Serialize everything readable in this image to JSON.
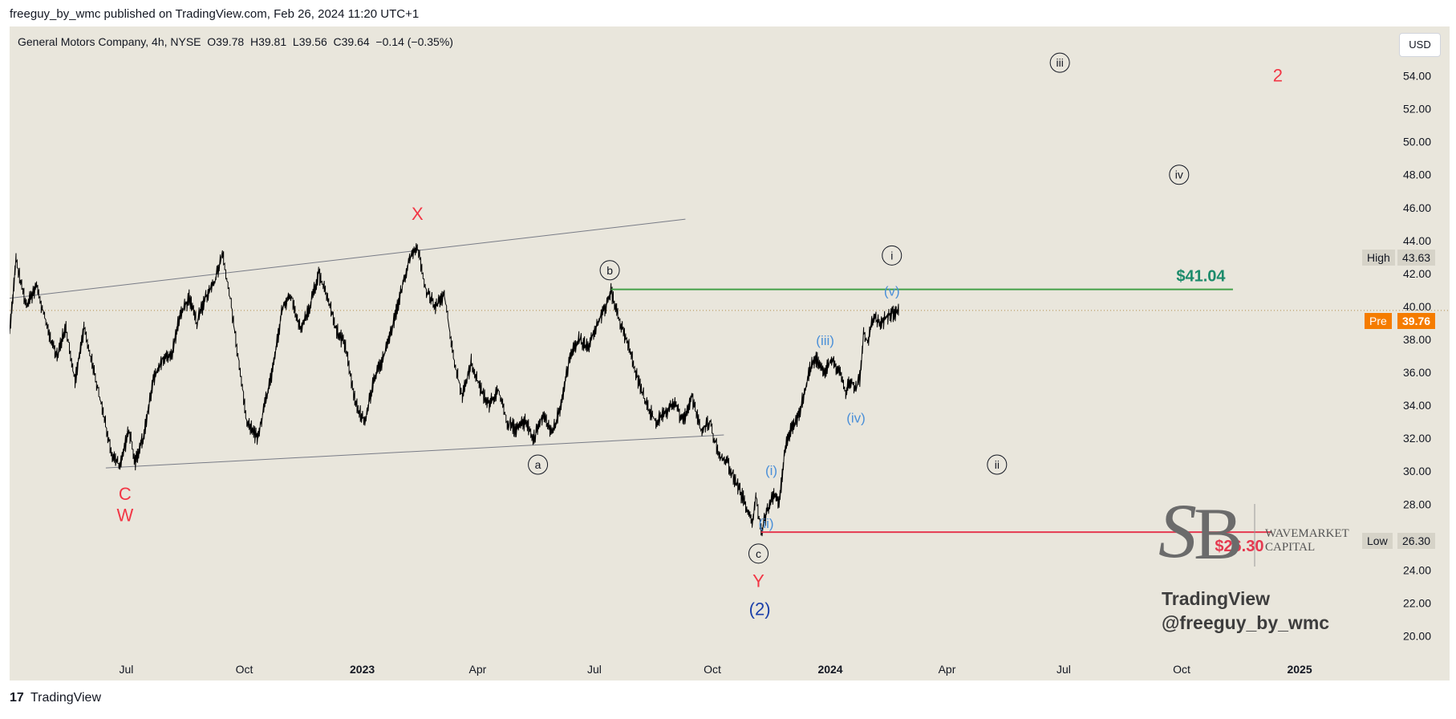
{
  "publisher": "freeguy_by_wmc published on TradingView.com, Feb 26, 2024 11:20 UTC+1",
  "symbol_line": "General Motors Company, 4h, NYSE  O39.78  H39.81  L39.56  C39.64  −0.14 (−0.35%)",
  "currency": "USD",
  "high": {
    "label": "High",
    "value": "43.63"
  },
  "low": {
    "label": "Low",
    "value": "26.30"
  },
  "pre": {
    "label": "Pre",
    "value": "39.76"
  },
  "brand": {
    "line1": "WAVEMARKET",
    "line2": "CAPITAL"
  },
  "watermark": {
    "line1": "TradingView",
    "line2": "@freeguy_by_wmc"
  },
  "footer": {
    "logo": "17",
    "text": "TradingView"
  },
  "colors": {
    "green_level": "#43a047",
    "red_level": "#e53950",
    "pre_badge": "#f57c00",
    "wave_red": "#f23645",
    "wave_blue": "#4a8fd8",
    "wave_navy": "#1b3faa",
    "candle": "#000000"
  },
  "chart_data": {
    "type": "line",
    "title": "General Motors Company, 4h, NYSE",
    "ylim": [
      19,
      57
    ],
    "y_ticks": [
      20,
      22,
      24,
      26,
      28,
      30,
      32,
      34,
      36,
      38,
      40,
      42,
      44,
      46,
      48,
      50,
      52,
      54
    ],
    "y_tick_labels": [
      "20.00",
      "22.00",
      "24.00",
      "26.00",
      "28.00",
      "30.00",
      "32.00",
      "34.00",
      "36.00",
      "38.00",
      "40.00",
      "42.00",
      "44.00",
      "46.00",
      "48.00",
      "50.00",
      "52.00",
      "54.00"
    ],
    "x_range": [
      "2022-04-01",
      "2025-02-15"
    ],
    "x_ticks": [
      {
        "date": "2022-07-01",
        "label": "Jul",
        "bold": false
      },
      {
        "date": "2022-10-01",
        "label": "Oct",
        "bold": false
      },
      {
        "date": "2023-01-01",
        "label": "2023",
        "bold": true
      },
      {
        "date": "2023-04-01",
        "label": "Apr",
        "bold": false
      },
      {
        "date": "2023-07-01",
        "label": "Jul",
        "bold": false
      },
      {
        "date": "2023-10-01",
        "label": "Oct",
        "bold": false
      },
      {
        "date": "2024-01-01",
        "label": "2024",
        "bold": true
      },
      {
        "date": "2024-04-01",
        "label": "Apr",
        "bold": false
      },
      {
        "date": "2024-07-01",
        "label": "Jul",
        "bold": false
      },
      {
        "date": "2024-10-01",
        "label": "Oct",
        "bold": false
      },
      {
        "date": "2025-01-01",
        "label": "2025",
        "bold": true
      }
    ],
    "series": [
      {
        "name": "GM",
        "points": [
          [
            "2022-04-01",
            38.5
          ],
          [
            "2022-04-06",
            42.8
          ],
          [
            "2022-04-14",
            40.0
          ],
          [
            "2022-04-22",
            41.2
          ],
          [
            "2022-05-01",
            38.5
          ],
          [
            "2022-05-08",
            37.0
          ],
          [
            "2022-05-15",
            38.8
          ],
          [
            "2022-05-22",
            35.5
          ],
          [
            "2022-05-29",
            38.7
          ],
          [
            "2022-06-06",
            36.0
          ],
          [
            "2022-06-13",
            33.5
          ],
          [
            "2022-06-20",
            31.0
          ],
          [
            "2022-06-26",
            30.3
          ],
          [
            "2022-07-03",
            32.5
          ],
          [
            "2022-07-08",
            30.6
          ],
          [
            "2022-07-14",
            32.0
          ],
          [
            "2022-07-22",
            35.5
          ],
          [
            "2022-07-29",
            36.8
          ],
          [
            "2022-08-05",
            37.0
          ],
          [
            "2022-08-12",
            39.5
          ],
          [
            "2022-08-19",
            40.5
          ],
          [
            "2022-08-25",
            39.0
          ],
          [
            "2022-09-01",
            40.6
          ],
          [
            "2022-09-08",
            41.5
          ],
          [
            "2022-09-14",
            43.3
          ],
          [
            "2022-09-20",
            40.5
          ],
          [
            "2022-09-27",
            36.5
          ],
          [
            "2022-10-03",
            33.0
          ],
          [
            "2022-10-11",
            32.0
          ],
          [
            "2022-10-17",
            34.0
          ],
          [
            "2022-10-24",
            36.5
          ],
          [
            "2022-10-31",
            40.0
          ],
          [
            "2022-11-07",
            40.6
          ],
          [
            "2022-11-14",
            38.5
          ],
          [
            "2022-11-21",
            40.0
          ],
          [
            "2022-11-28",
            42.0
          ],
          [
            "2022-12-05",
            40.5
          ],
          [
            "2022-12-12",
            38.6
          ],
          [
            "2022-12-19",
            37.5
          ],
          [
            "2022-12-27",
            34.0
          ],
          [
            "2023-01-03",
            33.0
          ],
          [
            "2023-01-10",
            35.5
          ],
          [
            "2023-01-17",
            36.8
          ],
          [
            "2023-01-24",
            38.5
          ],
          [
            "2023-01-31",
            40.8
          ],
          [
            "2023-02-07",
            43.0
          ],
          [
            "2023-02-13",
            43.6
          ],
          [
            "2023-02-20",
            41.0
          ],
          [
            "2023-02-27",
            40.0
          ],
          [
            "2023-03-06",
            40.7
          ],
          [
            "2023-03-13",
            37.0
          ],
          [
            "2023-03-20",
            34.5
          ],
          [
            "2023-03-27",
            36.6
          ],
          [
            "2023-04-03",
            35.0
          ],
          [
            "2023-04-10",
            34.0
          ],
          [
            "2023-04-17",
            35.0
          ],
          [
            "2023-04-24",
            33.0
          ],
          [
            "2023-05-01",
            32.5
          ],
          [
            "2023-05-08",
            33.0
          ],
          [
            "2023-05-15",
            32.0
          ],
          [
            "2023-05-22",
            33.5
          ],
          [
            "2023-05-29",
            32.3
          ],
          [
            "2023-06-05",
            34.0
          ],
          [
            "2023-06-12",
            37.0
          ],
          [
            "2023-06-19",
            38.0
          ],
          [
            "2023-06-26",
            37.5
          ],
          [
            "2023-07-03",
            39.0
          ],
          [
            "2023-07-10",
            40.0
          ],
          [
            "2023-07-14",
            40.9
          ],
          [
            "2023-07-21",
            39.0
          ],
          [
            "2023-07-28",
            37.5
          ],
          [
            "2023-08-04",
            35.5
          ],
          [
            "2023-08-11",
            34.0
          ],
          [
            "2023-08-18",
            33.0
          ],
          [
            "2023-08-25",
            33.5
          ],
          [
            "2023-09-01",
            34.2
          ],
          [
            "2023-09-08",
            33.0
          ],
          [
            "2023-09-15",
            34.5
          ],
          [
            "2023-09-22",
            32.5
          ],
          [
            "2023-09-29",
            33.0
          ],
          [
            "2023-10-06",
            31.0
          ],
          [
            "2023-10-13",
            30.5
          ],
          [
            "2023-10-20",
            29.2
          ],
          [
            "2023-10-27",
            28.0
          ],
          [
            "2023-11-01",
            26.8
          ],
          [
            "2023-11-04",
            28.5
          ],
          [
            "2023-11-08",
            26.3
          ],
          [
            "2023-11-13",
            27.6
          ],
          [
            "2023-11-18",
            28.5
          ],
          [
            "2023-11-22",
            28.0
          ],
          [
            "2023-11-27",
            31.5
          ],
          [
            "2023-12-01",
            32.5
          ],
          [
            "2023-12-06",
            33.0
          ],
          [
            "2023-12-11",
            34.5
          ],
          [
            "2023-12-16",
            36.2
          ],
          [
            "2023-12-21",
            36.8
          ],
          [
            "2023-12-27",
            36.0
          ],
          [
            "2024-01-02",
            36.8
          ],
          [
            "2024-01-08",
            36.0
          ],
          [
            "2024-01-13",
            34.8
          ],
          [
            "2024-01-17",
            35.5
          ],
          [
            "2024-01-21",
            35.0
          ],
          [
            "2024-01-24",
            35.6
          ],
          [
            "2024-01-27",
            38.5
          ],
          [
            "2024-01-30",
            37.8
          ],
          [
            "2024-02-04",
            39.5
          ],
          [
            "2024-02-09",
            38.8
          ],
          [
            "2024-02-14",
            39.4
          ],
          [
            "2024-02-19",
            39.6
          ],
          [
            "2024-02-24",
            39.7
          ]
        ]
      }
    ],
    "horizontal_levels": [
      {
        "value": 41.04,
        "label": "$41.04",
        "from": "2023-07-14",
        "to": "2024-11-10",
        "color": "green"
      },
      {
        "value": 26.3,
        "label": "$26.30",
        "from": "2023-11-08",
        "to": "2024-12-10",
        "color": "red"
      }
    ],
    "price_line": {
      "value": 39.76,
      "label": "Pre"
    },
    "trendlines": [
      {
        "name": "upper-channel",
        "from": [
          "2022-04-01",
          40.5
        ],
        "to": [
          "2023-09-10",
          45.3
        ]
      },
      {
        "name": "lower-channel",
        "from": [
          "2022-06-15",
          30.2
        ],
        "to": [
          "2023-10-10",
          32.2
        ]
      }
    ],
    "annotations": [
      {
        "text": "X",
        "style": "red",
        "date": "2023-02-13",
        "price": 45.6
      },
      {
        "text": "C",
        "style": "red",
        "date": "2022-06-30",
        "price": 28.6
      },
      {
        "text": "W",
        "style": "red",
        "date": "2022-06-30",
        "price": 27.3
      },
      {
        "text": "Y",
        "style": "red",
        "date": "2023-11-06",
        "price": 23.3
      },
      {
        "text": "2",
        "style": "red",
        "date": "2024-12-15",
        "price": 54.0
      },
      {
        "text": "b",
        "style": "circle",
        "date": "2023-07-13",
        "price": 42.2
      },
      {
        "text": "a",
        "style": "circle",
        "date": "2023-05-18",
        "price": 30.4
      },
      {
        "text": "c",
        "style": "circle",
        "date": "2023-11-06",
        "price": 25.0
      },
      {
        "text": "i",
        "style": "circle",
        "date": "2024-02-18",
        "price": 43.1
      },
      {
        "text": "ii",
        "style": "circle",
        "date": "2024-05-10",
        "price": 30.4
      },
      {
        "text": "iii",
        "style": "circle",
        "date": "2024-06-28",
        "price": 54.8
      },
      {
        "text": "iv",
        "style": "circle",
        "date": "2024-09-29",
        "price": 48.0
      },
      {
        "text": "(i)",
        "style": "blue",
        "date": "2023-11-16",
        "price": 30.1
      },
      {
        "text": "(ii)",
        "style": "blue",
        "date": "2023-11-12",
        "price": 26.9
      },
      {
        "text": "(iii)",
        "style": "blue",
        "date": "2023-12-28",
        "price": 38.0
      },
      {
        "text": "(iv)",
        "style": "blue",
        "date": "2024-01-21",
        "price": 33.3
      },
      {
        "text": "(v)",
        "style": "blue",
        "date": "2024-02-18",
        "price": 41.0
      },
      {
        "text": "(2)",
        "style": "navy",
        "date": "2023-11-07",
        "price": 21.6
      }
    ]
  }
}
